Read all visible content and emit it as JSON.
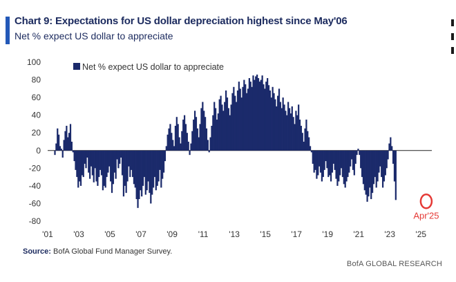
{
  "header": {
    "title": "Chart 9: Expectations for US dollar depreciation highest since May'06",
    "subtitle": "Net % expect US dollar to appreciate"
  },
  "footer": {
    "source_label": "Source:",
    "source_text": "BofA Global Fund Manager Survey.",
    "research": "BofA GLOBAL RESEARCH"
  },
  "colors": {
    "accent": "#2358b8",
    "bars": "#1b2a6b",
    "highlight": "#e53935",
    "axis_text": "#333333"
  },
  "chart_data": {
    "type": "bar",
    "title": "Chart 9: Expectations for US dollar depreciation highest since May'06",
    "ylabel": "",
    "xlabel": "",
    "ylim": [
      -80,
      100
    ],
    "xlim": [
      2001.0,
      2025.7
    ],
    "yticks": [
      100,
      80,
      60,
      40,
      20,
      0,
      -20,
      -40,
      -60,
      -80
    ],
    "xtick_labels": [
      "'01",
      "'03",
      "'05",
      "'07",
      "'09",
      "'11",
      "'13",
      "'15",
      "'17",
      "'19",
      "'21",
      "'23",
      "'25"
    ],
    "xtick_years": [
      2001,
      2003,
      2005,
      2007,
      2009,
      2011,
      2013,
      2015,
      2017,
      2019,
      2021,
      2023,
      2025
    ],
    "legend": {
      "label": "Net % expect US dollar to appreciate",
      "position": "top-left"
    },
    "annotation": {
      "label": "Apr'25",
      "x": 2025.29,
      "y": -56
    },
    "series": [
      {
        "name": "Net % expect US dollar to appreciate",
        "start": "2001-06",
        "frequency": "monthly",
        "values": [
          -5,
          8,
          25,
          18,
          5,
          2,
          -8,
          12,
          22,
          28,
          15,
          20,
          30,
          10,
          -2,
          -12,
          -22,
          -30,
          -42,
          -35,
          -40,
          -28,
          -30,
          -15,
          -20,
          -8,
          -25,
          -32,
          -18,
          -28,
          -36,
          -20,
          -35,
          -40,
          -30,
          -22,
          -28,
          -45,
          -40,
          -42,
          -30,
          -25,
          -18,
          -35,
          -48,
          -38,
          -25,
          -32,
          -10,
          -20,
          -15,
          -8,
          -28,
          -52,
          -40,
          -48,
          -35,
          -18,
          -30,
          -22,
          -30,
          -38,
          -42,
          -55,
          -65,
          -55,
          -45,
          -52,
          -40,
          -30,
          -50,
          -45,
          -35,
          -48,
          -60,
          -50,
          -42,
          -30,
          -45,
          -40,
          -35,
          -22,
          -42,
          -32,
          -25,
          -12,
          5,
          18,
          25,
          30,
          20,
          12,
          5,
          28,
          38,
          30,
          15,
          8,
          22,
          35,
          40,
          30,
          20,
          10,
          -5,
          8,
          22,
          35,
          45,
          38,
          25,
          15,
          30,
          48,
          55,
          45,
          38,
          25,
          12,
          -2,
          15,
          28,
          40,
          55,
          48,
          35,
          42,
          58,
          62,
          52,
          45,
          55,
          68,
          60,
          48,
          40,
          52,
          65,
          72,
          62,
          55,
          68,
          78,
          70,
          60,
          72,
          80,
          75,
          65,
          70,
          82,
          78,
          72,
          85,
          80,
          84,
          86,
          82,
          78,
          80,
          85,
          75,
          70,
          78,
          82,
          74,
          68,
          60,
          72,
          65,
          58,
          50,
          62,
          70,
          55,
          48,
          60,
          52,
          45,
          40,
          55,
          48,
          42,
          50,
          38,
          30,
          45,
          40,
          52,
          35,
          28,
          20,
          10,
          25,
          35,
          22,
          15,
          5,
          -2,
          -15,
          -25,
          -22,
          -32,
          -28,
          -18,
          -25,
          -35,
          -30,
          -22,
          -12,
          -20,
          -30,
          -28,
          -35,
          -25,
          -15,
          -22,
          -32,
          -40,
          -35,
          -28,
          -20,
          -30,
          -38,
          -42,
          -35,
          -30,
          -25,
          -18,
          -10,
          -22,
          -28,
          -15,
          -5,
          2,
          -5,
          -20,
          -30,
          -38,
          -45,
          -50,
          -58,
          -52,
          -42,
          -55,
          -48,
          -38,
          -30,
          -42,
          -35,
          -25,
          -18,
          -30,
          -42,
          -35,
          -28,
          -20,
          -10,
          8,
          15,
          5,
          -15,
          -35,
          -56
        ]
      }
    ]
  }
}
